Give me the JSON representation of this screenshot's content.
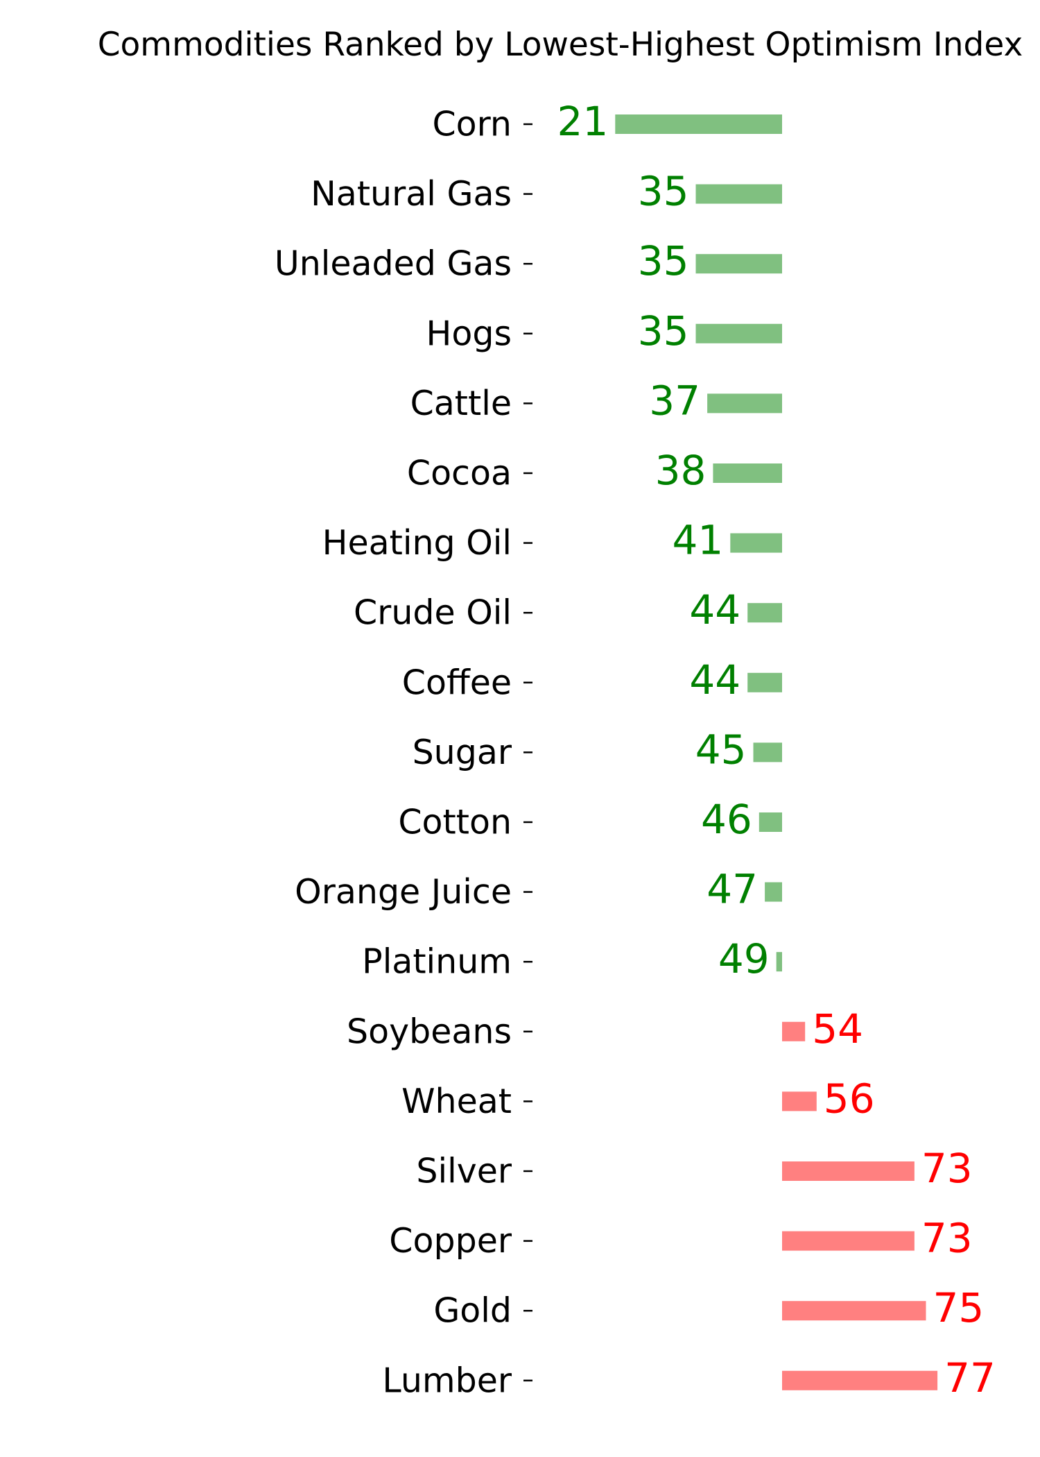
{
  "chart_data": {
    "type": "bar",
    "orientation": "horizontal",
    "title": "Commodities Ranked by Lowest-Highest Optimism Index",
    "xlabel": "",
    "ylabel": "",
    "baseline": 50,
    "xlim": [
      0,
      100
    ],
    "categories": [
      "Corn",
      "Natural Gas",
      "Unleaded Gas",
      "Hogs",
      "Cattle",
      "Cocoa",
      "Heating Oil",
      "Crude Oil",
      "Coffee",
      "Sugar",
      "Cotton",
      "Orange Juice",
      "Platinum",
      "Soybeans",
      "Wheat",
      "Silver",
      "Copper",
      "Gold",
      "Lumber"
    ],
    "values": [
      21,
      35,
      35,
      35,
      37,
      38,
      41,
      44,
      44,
      45,
      46,
      47,
      49,
      54,
      56,
      73,
      73,
      75,
      77
    ],
    "value_labels": [
      "21",
      "35",
      "35",
      "35",
      "37",
      "38",
      "41",
      "44",
      "44",
      "45",
      "46",
      "47",
      "49",
      "54",
      "56",
      "73",
      "73",
      "75",
      "77"
    ],
    "colors": {
      "below_bar": "#80c080",
      "below_text": "#008000",
      "above_bar": "#ff8080",
      "above_text": "#ff0000"
    },
    "grid": false,
    "legend": "none"
  }
}
